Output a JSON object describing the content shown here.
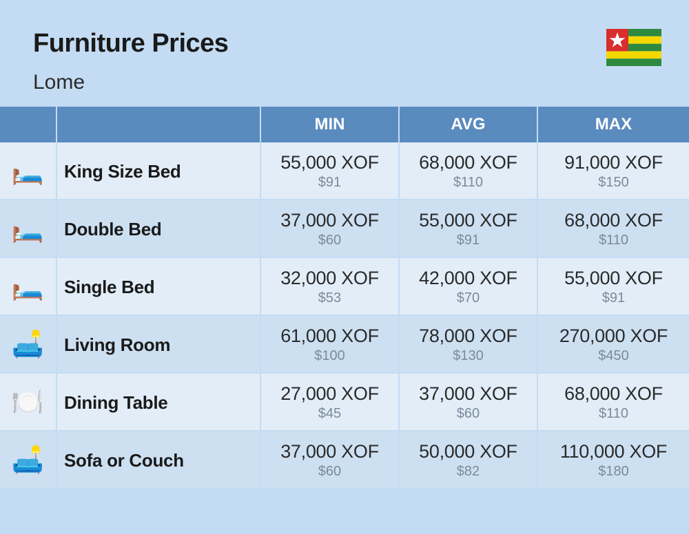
{
  "header": {
    "title": "Furniture Prices",
    "subtitle": "Lome"
  },
  "flag": {
    "name": "togo-flag",
    "stripe_colors": [
      "#2d8a3e",
      "#f5d800",
      "#2d8a3e",
      "#f5d800",
      "#2d8a3e"
    ],
    "canton_color": "#d82e2e",
    "star_color": "#ffffff"
  },
  "columns": [
    "MIN",
    "AVG",
    "MAX"
  ],
  "rows": [
    {
      "icon": "🛏️",
      "icon_name": "king-bed-icon",
      "name": "King Size Bed",
      "prices": [
        {
          "main": "55,000 XOF",
          "sub": "$91"
        },
        {
          "main": "68,000 XOF",
          "sub": "$110"
        },
        {
          "main": "91,000 XOF",
          "sub": "$150"
        }
      ]
    },
    {
      "icon": "🛏️",
      "icon_name": "double-bed-icon",
      "name": "Double Bed",
      "prices": [
        {
          "main": "37,000 XOF",
          "sub": "$60"
        },
        {
          "main": "55,000 XOF",
          "sub": "$91"
        },
        {
          "main": "68,000 XOF",
          "sub": "$110"
        }
      ]
    },
    {
      "icon": "🛏️",
      "icon_name": "single-bed-icon",
      "name": "Single Bed",
      "prices": [
        {
          "main": "32,000 XOF",
          "sub": "$53"
        },
        {
          "main": "42,000 XOF",
          "sub": "$70"
        },
        {
          "main": "55,000 XOF",
          "sub": "$91"
        }
      ]
    },
    {
      "icon": "🛋️",
      "icon_name": "living-room-icon",
      "name": "Living Room",
      "prices": [
        {
          "main": "61,000 XOF",
          "sub": "$100"
        },
        {
          "main": "78,000 XOF",
          "sub": "$130"
        },
        {
          "main": "270,000 XOF",
          "sub": "$450"
        }
      ]
    },
    {
      "icon": "🍽️",
      "icon_name": "dining-table-icon",
      "name": "Dining Table",
      "prices": [
        {
          "main": "27,000 XOF",
          "sub": "$45"
        },
        {
          "main": "37,000 XOF",
          "sub": "$60"
        },
        {
          "main": "68,000 XOF",
          "sub": "$110"
        }
      ]
    },
    {
      "icon": "🛋️",
      "icon_name": "sofa-icon",
      "name": "Sofa or Couch",
      "prices": [
        {
          "main": "37,000 XOF",
          "sub": "$60"
        },
        {
          "main": "50,000 XOF",
          "sub": "$82"
        },
        {
          "main": "110,000 XOF",
          "sub": "$180"
        }
      ]
    }
  ],
  "styling": {
    "background_color": "#c3dcf3",
    "header_bg": "#5a8bbf",
    "header_text_color": "#ffffff",
    "row_odd_bg": "#e2edf8",
    "row_even_bg": "#cde0f2",
    "title_fontsize": 38,
    "subtitle_fontsize": 30,
    "col_header_fontsize": 24,
    "name_fontsize": 26,
    "price_main_fontsize": 27,
    "price_sub_fontsize": 20,
    "price_sub_color": "#7a8a9a",
    "border_color": "#c3dcf3",
    "icon_col_width": 82,
    "name_col_width": 296
  }
}
